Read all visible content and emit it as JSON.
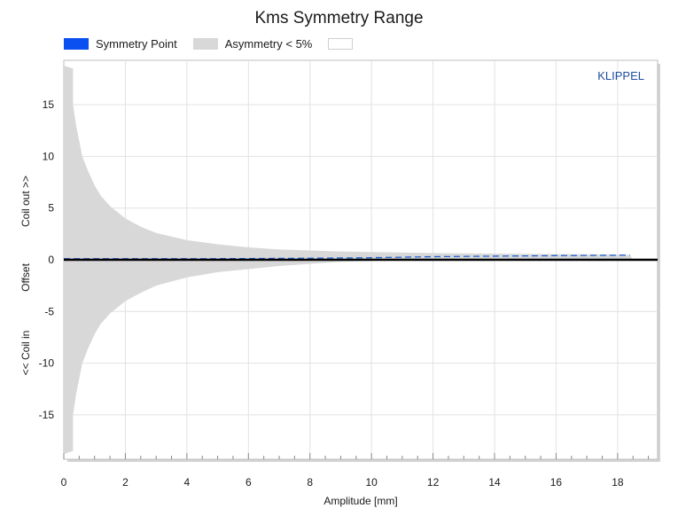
{
  "chart_data": {
    "type": "area",
    "title": "Kms Symmetry Range",
    "xlabel": "Amplitude [mm]",
    "ylabel": {
      "top": "Coil out >>",
      "middle": "Offset",
      "bottom": "<< Coil in"
    },
    "watermark": "KLIPPEL",
    "xlim": [
      0,
      19.3
    ],
    "ylim": [
      -19.3,
      19.3
    ],
    "xticks": [
      0,
      2,
      4,
      6,
      8,
      10,
      12,
      14,
      16,
      18
    ],
    "yticks": [
      15,
      10,
      5,
      0,
      -5,
      -10,
      -15
    ],
    "grid": true,
    "legend": [
      {
        "label": "Symmetry Point",
        "color": "#0a4ff0"
      },
      {
        "label": "Asymmetry < 5%",
        "color": "#d8d8d8"
      },
      {
        "label": "",
        "color": "#ffffff"
      }
    ],
    "series": [
      {
        "name": "Asymmetry < 5%",
        "kind": "band",
        "color": "#d8d8d8",
        "x": [
          0,
          0.3,
          0.3,
          0.4,
          0.5,
          0.6,
          0.8,
          1.0,
          1.2,
          1.5,
          2.0,
          2.5,
          3.0,
          4.0,
          5.0,
          6.0,
          7.0,
          8.0,
          9.0,
          10.0,
          12.0,
          14.0,
          16.0,
          18.0,
          18.4,
          18.5
        ],
        "upper": [
          18.8,
          18.5,
          15.0,
          13.0,
          11.5,
          10.0,
          8.5,
          7.2,
          6.2,
          5.2,
          4.0,
          3.2,
          2.6,
          1.9,
          1.5,
          1.2,
          1.0,
          0.9,
          0.8,
          0.75,
          0.65,
          0.6,
          0.55,
          0.5,
          0.45,
          0.0
        ],
        "lower": [
          -18.8,
          -18.5,
          -15.0,
          -13.0,
          -11.5,
          -10.0,
          -8.5,
          -7.2,
          -6.2,
          -5.2,
          -4.0,
          -3.2,
          -2.5,
          -1.7,
          -1.2,
          -0.9,
          -0.6,
          -0.4,
          -0.2,
          -0.1,
          0.0,
          0.0,
          0.0,
          0.0,
          0.0,
          0.0
        ]
      },
      {
        "name": "Symmetry Point",
        "kind": "line",
        "dashed": true,
        "color": "#2060d0",
        "x": [
          0,
          2,
          4,
          6,
          8,
          10,
          12,
          14,
          16,
          18.4
        ],
        "y": [
          0.1,
          0.1,
          0.1,
          0.12,
          0.15,
          0.2,
          0.3,
          0.35,
          0.4,
          0.45
        ]
      },
      {
        "name": "Zero",
        "kind": "line",
        "dashed": false,
        "color": "#000000",
        "x": [
          0,
          19.3
        ],
        "y": [
          0,
          0
        ]
      }
    ]
  }
}
